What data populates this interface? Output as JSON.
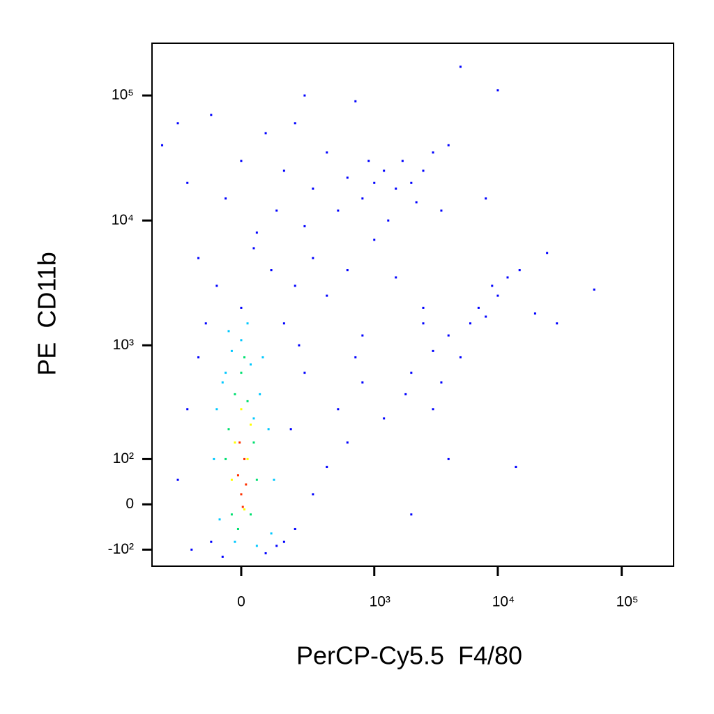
{
  "chart_data": {
    "type": "scatter",
    "xlabel": "PerCP-Cy5.5  F4/80",
    "ylabel": "PE  CD11b",
    "xscale": "biexponential",
    "yscale": "biexponential",
    "xlim": [
      -430,
      262144
    ],
    "ylim": [
      -150,
      262144
    ],
    "xticks": [
      0,
      {
        "value": 1000,
        "label": "10³"
      },
      {
        "value": 10000,
        "label": "10⁴"
      },
      {
        "value": 100000,
        "label": "10⁵"
      }
    ],
    "yticks": [
      {
        "value": -100,
        "label": "-10²"
      },
      0,
      {
        "value": 100,
        "label": "10²"
      },
      {
        "value": 1000,
        "label": "10³"
      },
      {
        "value": 10000,
        "label": "10⁴"
      },
      {
        "value": 100000,
        "label": "10⁵"
      }
    ],
    "series": [
      {
        "color": "#0000ff",
        "x": [
          -350,
          -250,
          -200,
          -100,
          -50,
          0,
          50,
          80,
          120,
          150,
          200,
          250,
          300,
          400,
          500,
          600,
          700,
          800,
          900,
          1000,
          1200,
          1300,
          1500,
          1700,
          2000,
          2200,
          2500,
          3000,
          3500,
          4000,
          8000,
          10000,
          5000,
          250,
          -150,
          -80,
          0,
          40,
          100,
          150,
          200,
          300,
          400,
          600,
          800,
          1000,
          1500,
          2000,
          2500,
          3000,
          3500,
          4000,
          5000,
          6000,
          7000,
          8000,
          9000,
          10000,
          12000,
          15000,
          20000,
          30000,
          60000,
          25000,
          14000,
          4000,
          2000,
          1200,
          800,
          600,
          500,
          400,
          300,
          250,
          200,
          180,
          150,
          220,
          -200,
          -250,
          -180,
          -150,
          -120,
          -100,
          -60,
          80,
          120,
          3000,
          1800,
          2500,
          700
        ],
        "y": [
          40000,
          60000,
          20000,
          70000,
          15000,
          30000,
          8000,
          50000,
          12000,
          25000,
          60000,
          9000,
          18000,
          35000,
          12000,
          22000,
          90000,
          15000,
          30000,
          20000,
          25000,
          10000,
          18000,
          30000,
          20000,
          14000,
          25000,
          35000,
          12000,
          40000,
          15000,
          110000,
          170000,
          100000,
          5000,
          3000,
          2000,
          6000,
          4000,
          1500,
          3000,
          5000,
          2500,
          4000,
          1200,
          7000,
          3500,
          600,
          1500,
          900,
          500,
          1200,
          800,
          1500,
          2000,
          1700,
          3000,
          2500,
          3500,
          4000,
          1800,
          1500,
          2800,
          5500,
          80,
          100,
          -20,
          250,
          500,
          150,
          300,
          80,
          20,
          600,
          -50,
          200,
          -80,
          1000,
          300,
          50,
          -100,
          800,
          1500,
          -80,
          -120,
          -110,
          -90,
          300,
          400,
          2000,
          800
        ]
      },
      {
        "color": "#00c8ff",
        "x": [
          -80,
          -50,
          -30,
          0,
          30,
          60,
          90,
          110,
          100,
          50,
          -20,
          -70,
          -90,
          70,
          -40,
          20,
          40,
          -60
        ],
        "y": [
          300,
          600,
          900,
          1100,
          700,
          400,
          200,
          50,
          -60,
          -90,
          -80,
          -30,
          100,
          800,
          1300,
          1500,
          250,
          500
        ]
      },
      {
        "color": "#00e070",
        "x": [
          -40,
          -20,
          0,
          20,
          40,
          30,
          -30,
          -50,
          50,
          10,
          -10
        ],
        "y": [
          200,
          400,
          600,
          350,
          150,
          -20,
          -20,
          100,
          50,
          800,
          -50
        ]
      },
      {
        "color": "#ffff00",
        "x": [
          -20,
          0,
          20,
          10,
          -30,
          30
        ],
        "y": [
          150,
          300,
          100,
          -10,
          50,
          220
        ]
      },
      {
        "color": "#ff3000",
        "x": [
          -10,
          0,
          10,
          -5,
          5,
          15
        ],
        "y": [
          60,
          20,
          100,
          150,
          -5,
          40
        ]
      }
    ]
  }
}
